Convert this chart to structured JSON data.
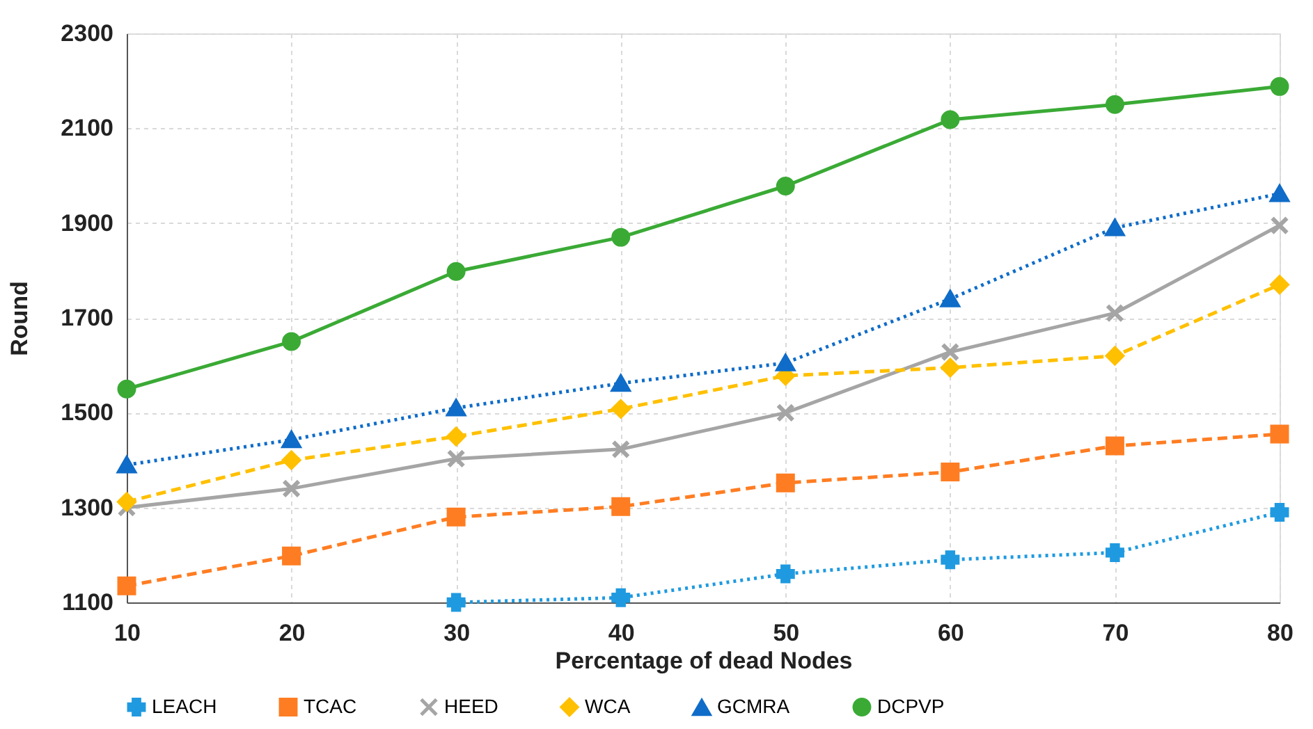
{
  "chart_data": {
    "type": "line",
    "xlabel": "Percentage of dead Nodes",
    "ylabel": "Round",
    "x": [
      10,
      20,
      30,
      40,
      50,
      60,
      70,
      80
    ],
    "series": [
      {
        "name": "LEACH",
        "color": "#1f9ae0",
        "marker": "cross",
        "line_style": "dotted",
        "values": [
          null,
          null,
          1100,
          1110,
          1160,
          1190,
          1205,
          1290
        ]
      },
      {
        "name": "TCAC",
        "color": "#ff7d22",
        "marker": "square",
        "line_style": "dashed",
        "values": [
          1135,
          1198,
          1280,
          1302,
          1352,
          1375,
          1430,
          1455
        ]
      },
      {
        "name": "HEED",
        "color": "#a5a5a5",
        "marker": "x",
        "line_style": "solid",
        "values": [
          1300,
          1340,
          1403,
          1423,
          1500,
          1628,
          1710,
          1895
        ]
      },
      {
        "name": "WCA",
        "color": "#ffc000",
        "marker": "diamond",
        "line_style": "dashed",
        "values": [
          1312,
          1400,
          1450,
          1508,
          1578,
          1595,
          1620,
          1770
        ]
      },
      {
        "name": "GCMRA",
        "color": "#0f6cc8",
        "marker": "triangle",
        "line_style": "dotted",
        "values": [
          1390,
          1443,
          1510,
          1562,
          1605,
          1740,
          1890,
          1962
        ]
      },
      {
        "name": "DCPVP",
        "color": "#3aaa35",
        "marker": "circle",
        "line_style": "solid",
        "values": [
          1550,
          1650,
          1798,
          1870,
          1978,
          2118,
          2150,
          2188
        ]
      }
    ],
    "xlim": [
      10,
      80
    ],
    "xticks": [
      10,
      20,
      30,
      40,
      50,
      60,
      70,
      80
    ],
    "ylim": [
      1100,
      2300
    ],
    "yticks": [
      1100,
      1300,
      1500,
      1700,
      1900,
      2100,
      2300
    ],
    "grid": true,
    "legend": "bottom"
  }
}
